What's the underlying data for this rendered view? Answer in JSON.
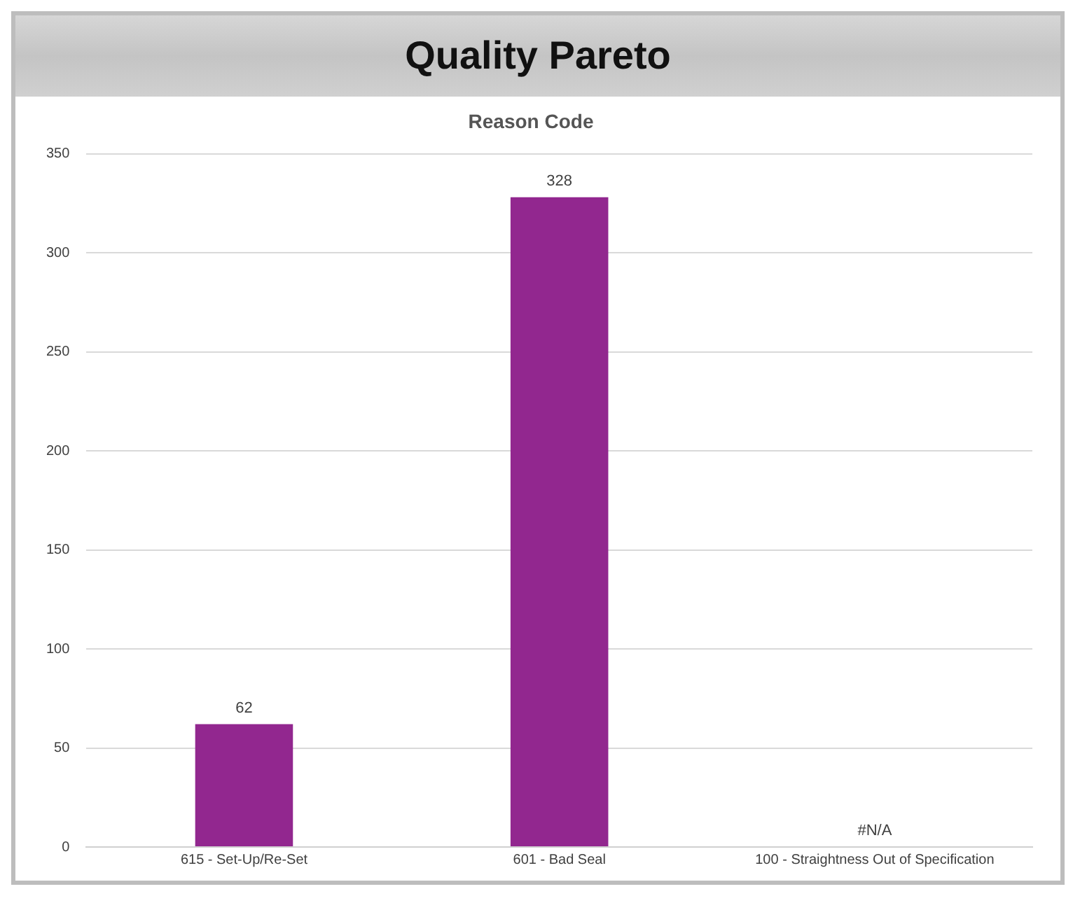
{
  "chart_data": {
    "type": "bar",
    "title": "Quality Pareto",
    "subtitle": "Reason Code",
    "categories": [
      "615 - Set-Up/Re-Set",
      "601 - Bad Seal",
      "100 - Straightness Out of Specification"
    ],
    "values": [
      62,
      328,
      null
    ],
    "value_labels": [
      "62",
      "328",
      "#N/A"
    ],
    "color": "#92278f",
    "ylim": [
      0,
      350
    ],
    "yticks": [
      0,
      50,
      100,
      150,
      200,
      250,
      300,
      350
    ],
    "grid": "y",
    "legend": false
  }
}
